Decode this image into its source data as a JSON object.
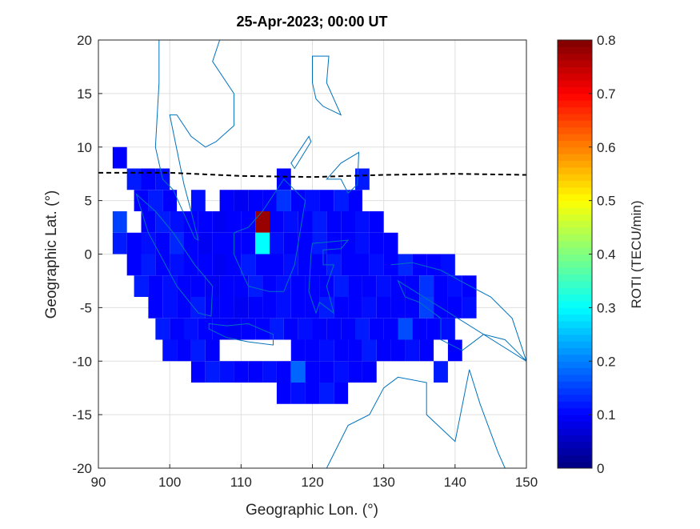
{
  "chart_data": {
    "type": "heatmap",
    "title": "25-Apr-2023; 00:00 UT",
    "x_label": "Geographic Lon. (°)",
    "y_label": "Geographic Lat. (°)",
    "colorbar_label": "ROTI (TECU/min)",
    "xlim": [
      90,
      150
    ],
    "xticks": [
      90,
      100,
      110,
      120,
      130,
      140,
      150
    ],
    "ylim": [
      -20,
      20
    ],
    "yticks": [
      -20,
      -15,
      -10,
      -5,
      0,
      5,
      10,
      15,
      20
    ],
    "clim": [
      0,
      0.8
    ],
    "cticks": [
      0,
      0.1,
      0.2,
      0.3,
      0.4,
      0.5,
      0.6,
      0.7,
      0.8
    ],
    "colormap": "jet",
    "grid": true,
    "cell_size": [
      2,
      2
    ],
    "dip_equator": {
      "color": "#000000",
      "lon": [
        90,
        100,
        110,
        120,
        130,
        140,
        150
      ],
      "lat": [
        7.6,
        7.6,
        7.3,
        7.2,
        7.4,
        7.5,
        7.4
      ]
    },
    "rows": [
      {
        "lat": 9,
        "lon": [
          93
        ],
        "roti": [
          0.1
        ]
      },
      {
        "lat": 7,
        "lon": [
          95,
          97,
          99,
          116,
          127
        ],
        "roti": [
          0.12,
          0.1,
          0.11,
          0.1,
          0.12
        ]
      },
      {
        "lat": 5,
        "lon": [
          96,
          98,
          100,
          104,
          108,
          110,
          112,
          114,
          116,
          118,
          120,
          122,
          124,
          126
        ],
        "roti": [
          0.1,
          0.12,
          0.1,
          0.11,
          0.1,
          0.09,
          0.1,
          0.1,
          0.14,
          0.1,
          0.11,
          0.1,
          0.12,
          0.1
        ]
      },
      {
        "lat": 3,
        "lon": [
          93,
          97,
          99,
          101,
          103,
          105,
          107,
          109,
          111,
          113,
          115,
          117,
          119,
          121,
          123,
          125,
          127,
          129
        ],
        "roti": [
          0.15,
          0.1,
          0.12,
          0.11,
          0.1,
          0.1,
          0.09,
          0.1,
          0.1,
          0.78,
          0.1,
          0.11,
          0.1,
          0.12,
          0.1,
          0.1,
          0.11,
          0.1
        ]
      },
      {
        "lat": 1,
        "lon": [
          93,
          95,
          97,
          99,
          101,
          103,
          105,
          107,
          109,
          111,
          113,
          115,
          117,
          119,
          121,
          123,
          125,
          127,
          129,
          131
        ],
        "roti": [
          0.12,
          0.1,
          0.11,
          0.1,
          0.13,
          0.1,
          0.09,
          0.1,
          0.1,
          0.1,
          0.3,
          0.11,
          0.1,
          0.1,
          0.12,
          0.1,
          0.1,
          0.11,
          0.1,
          0.1
        ]
      },
      {
        "lat": -1,
        "lon": [
          95,
          97,
          99,
          101,
          103,
          105,
          107,
          109,
          111,
          113,
          115,
          117,
          119,
          121,
          123,
          125,
          127,
          129,
          131,
          133,
          135,
          137,
          139
        ],
        "roti": [
          0.1,
          0.12,
          0.1,
          0.11,
          0.1,
          0.1,
          0.09,
          0.1,
          0.12,
          0.1,
          0.1,
          0.11,
          0.1,
          0.1,
          0.12,
          0.1,
          0.1,
          0.11,
          0.1,
          0.13,
          0.1,
          0.1,
          0.11
        ]
      },
      {
        "lat": -3,
        "lon": [
          96,
          98,
          100,
          102,
          104,
          106,
          108,
          110,
          112,
          114,
          116,
          118,
          120,
          122,
          124,
          126,
          128,
          130,
          132,
          134,
          136,
          138,
          140,
          142
        ],
        "roti": [
          0.12,
          0.1,
          0.11,
          0.1,
          0.1,
          0.09,
          0.1,
          0.1,
          0.12,
          0.1,
          0.11,
          0.1,
          0.1,
          0.1,
          0.12,
          0.1,
          0.1,
          0.11,
          0.1,
          0.1,
          0.14,
          0.1,
          0.11,
          0.1
        ]
      },
      {
        "lat": -5,
        "lon": [
          98,
          100,
          102,
          104,
          106,
          108,
          110,
          112,
          114,
          116,
          118,
          120,
          122,
          124,
          126,
          128,
          130,
          132,
          134,
          136,
          138,
          140,
          142
        ],
        "roti": [
          0.1,
          0.11,
          0.1,
          0.12,
          0.1,
          0.1,
          0.09,
          0.1,
          0.1,
          0.11,
          0.1,
          0.1,
          0.12,
          0.1,
          0.1,
          0.11,
          0.1,
          0.1,
          0.1,
          0.15,
          0.1,
          0.1,
          0.11
        ]
      },
      {
        "lat": -7,
        "lon": [
          99,
          101,
          103,
          105,
          107,
          109,
          111,
          113,
          115,
          117,
          119,
          121,
          123,
          125,
          127,
          129,
          131,
          133,
          135,
          137,
          139
        ],
        "roti": [
          0.12,
          0.1,
          0.11,
          0.1,
          0.1,
          0.09,
          0.1,
          0.1,
          0.12,
          0.1,
          0.11,
          0.1,
          0.1,
          0.1,
          0.12,
          0.1,
          0.1,
          0.16,
          0.1,
          0.1,
          0.11
        ]
      },
      {
        "lat": -9,
        "lon": [
          100,
          102,
          104,
          106,
          118,
          120,
          122,
          124,
          126,
          128,
          130,
          132,
          134,
          136,
          140
        ],
        "roti": [
          0.11,
          0.1,
          0.12,
          0.1,
          0.1,
          0.1,
          0.11,
          0.1,
          0.1,
          0.12,
          0.1,
          0.1,
          0.11,
          0.1,
          0.1
        ]
      },
      {
        "lat": -11,
        "lon": [
          104,
          106,
          108,
          110,
          112,
          114,
          116,
          118,
          120,
          122,
          124,
          126,
          128,
          138
        ],
        "roti": [
          0.1,
          0.12,
          0.11,
          0.1,
          0.1,
          0.11,
          0.1,
          0.18,
          0.1,
          0.1,
          0.11,
          0.1,
          0.1,
          0.12
        ]
      },
      {
        "lat": -13,
        "lon": [
          116,
          118,
          120,
          122,
          124
        ],
        "roti": [
          0.1,
          0.11,
          0.1,
          0.12,
          0.1
        ]
      }
    ]
  }
}
